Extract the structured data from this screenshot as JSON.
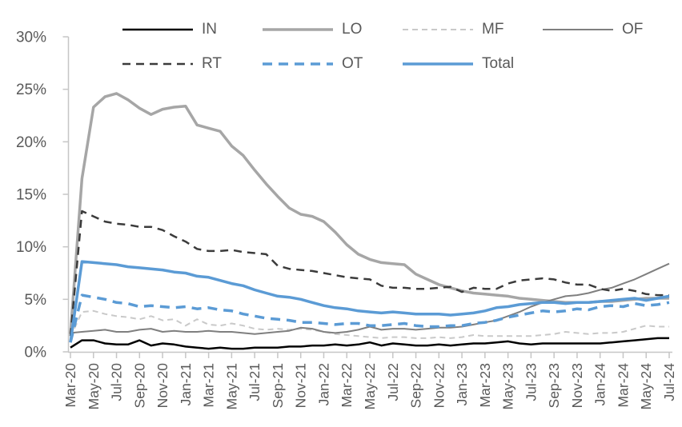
{
  "chart_data": {
    "type": "line",
    "title": "",
    "xlabel": "",
    "ylabel": "",
    "grid": false,
    "legend_position": "top",
    "ylim": [
      0,
      30
    ],
    "ytick_step": 5,
    "ytick_labels": [
      "0%",
      "5%",
      "10%",
      "15%",
      "20%",
      "25%",
      "30%"
    ],
    "x_tick_every": 2,
    "axis_color": "#c6c6c6",
    "text_color": "#595959",
    "x": [
      "Mar-20",
      "Apr-20",
      "May-20",
      "Jun-20",
      "Jul-20",
      "Aug-20",
      "Sep-20",
      "Oct-20",
      "Nov-20",
      "Dec-20",
      "Jan-21",
      "Feb-21",
      "Mar-21",
      "Apr-21",
      "May-21",
      "Jun-21",
      "Jul-21",
      "Aug-21",
      "Sep-21",
      "Oct-21",
      "Nov-21",
      "Dec-21",
      "Jan-22",
      "Feb-22",
      "Mar-22",
      "Apr-22",
      "May-22",
      "Jun-22",
      "Jul-22",
      "Aug-22",
      "Sep-22",
      "Oct-22",
      "Nov-22",
      "Dec-22",
      "Jan-23",
      "Feb-23",
      "Mar-23",
      "Apr-23",
      "May-23",
      "Jun-23",
      "Jul-23",
      "Aug-23",
      "Sep-23",
      "Oct-23",
      "Nov-23",
      "Dec-23",
      "Jan-24",
      "Feb-24",
      "Mar-24",
      "Apr-24",
      "May-24",
      "Jun-24",
      "Jul-24"
    ],
    "legend_rows": [
      [
        "IN",
        "LO",
        "MF",
        "OF"
      ],
      [
        "RT",
        "OT",
        "Total"
      ]
    ],
    "series": [
      {
        "name": "IN",
        "color": "#000000",
        "width": 2.5,
        "dash": null,
        "values": [
          0.4,
          1.1,
          1.1,
          0.8,
          0.7,
          0.7,
          1.1,
          0.6,
          0.8,
          0.7,
          0.5,
          0.4,
          0.3,
          0.4,
          0.3,
          0.3,
          0.4,
          0.4,
          0.4,
          0.5,
          0.5,
          0.6,
          0.6,
          0.7,
          0.6,
          0.7,
          0.9,
          0.6,
          0.8,
          0.7,
          0.6,
          0.6,
          0.7,
          0.6,
          0.7,
          0.8,
          0.8,
          0.9,
          1.0,
          0.8,
          0.7,
          0.8,
          0.8,
          0.8,
          0.8,
          0.8,
          0.8,
          0.9,
          1.0,
          1.1,
          1.2,
          1.3,
          1.3
        ]
      },
      {
        "name": "LO",
        "color": "#a6a6a6",
        "width": 3.5,
        "dash": null,
        "values": [
          1.7,
          16.5,
          23.3,
          24.3,
          24.6,
          24.0,
          23.2,
          22.6,
          23.1,
          23.3,
          23.4,
          21.6,
          21.3,
          21.0,
          19.6,
          18.7,
          17.3,
          16.0,
          14.8,
          13.7,
          13.1,
          12.9,
          12.4,
          11.4,
          10.2,
          9.3,
          8.8,
          8.5,
          8.4,
          8.3,
          7.4,
          6.9,
          6.4,
          6.1,
          5.8,
          5.6,
          5.5,
          5.4,
          5.3,
          5.1,
          5.0,
          4.9,
          4.8,
          4.7,
          4.7,
          4.7,
          4.8,
          4.8,
          4.9,
          5.0,
          5.1,
          5.1,
          5.1
        ]
      },
      {
        "name": "MF",
        "color": "#c9c9c9",
        "width": 2,
        "dash": "7 5",
        "values": [
          1.4,
          3.8,
          3.9,
          3.6,
          3.4,
          3.3,
          3.1,
          3.4,
          3.0,
          3.1,
          2.5,
          3.1,
          2.6,
          2.5,
          2.7,
          2.5,
          2.2,
          2.1,
          2.2,
          2.1,
          2.2,
          2.1,
          1.9,
          1.7,
          1.6,
          1.5,
          1.4,
          1.3,
          1.4,
          1.4,
          1.3,
          1.3,
          1.4,
          1.3,
          1.4,
          1.6,
          1.5,
          1.5,
          1.5,
          1.5,
          1.5,
          1.6,
          1.7,
          1.9,
          1.8,
          1.7,
          1.8,
          1.8,
          1.9,
          2.2,
          2.5,
          2.4,
          2.4
        ]
      },
      {
        "name": "OF",
        "color": "#7f7f7f",
        "width": 2,
        "dash": null,
        "values": [
          1.8,
          1.9,
          2.0,
          2.1,
          1.9,
          1.9,
          2.1,
          2.2,
          1.9,
          2.0,
          1.9,
          1.9,
          2.0,
          1.9,
          1.9,
          1.8,
          1.7,
          1.8,
          1.9,
          2.0,
          2.3,
          2.2,
          1.9,
          1.8,
          1.9,
          2.1,
          2.4,
          2.1,
          2.2,
          2.2,
          2.1,
          2.2,
          2.3,
          2.3,
          2.4,
          2.6,
          2.8,
          3.0,
          3.4,
          3.8,
          4.3,
          4.7,
          5.0,
          5.3,
          5.4,
          5.6,
          5.9,
          6.1,
          6.5,
          6.9,
          7.4,
          7.9,
          8.4
        ]
      },
      {
        "name": "RT",
        "color": "#3b3b3b",
        "width": 2.5,
        "dash": "10 7",
        "values": [
          1.5,
          13.4,
          12.9,
          12.4,
          12.2,
          12.1,
          11.9,
          11.9,
          11.6,
          11.0,
          10.5,
          9.8,
          9.6,
          9.6,
          9.7,
          9.5,
          9.4,
          9.3,
          8.2,
          7.9,
          7.8,
          7.7,
          7.5,
          7.3,
          7.1,
          7.0,
          6.9,
          6.3,
          6.1,
          6.1,
          6.0,
          6.0,
          6.1,
          6.2,
          5.7,
          6.1,
          6.0,
          6.0,
          6.5,
          6.8,
          6.9,
          7.0,
          6.9,
          6.6,
          6.4,
          6.4,
          6.0,
          5.8,
          6.0,
          5.8,
          5.5,
          5.4,
          5.4
        ]
      },
      {
        "name": "OT",
        "color": "#5b9bd5",
        "width": 3.5,
        "dash": "12 8",
        "values": [
          0.9,
          5.4,
          5.2,
          5.0,
          4.7,
          4.6,
          4.3,
          4.4,
          4.3,
          4.2,
          4.3,
          4.1,
          4.2,
          4.0,
          3.9,
          3.6,
          3.4,
          3.2,
          3.1,
          3.0,
          2.8,
          2.8,
          2.7,
          2.6,
          2.7,
          2.7,
          2.5,
          2.5,
          2.6,
          2.7,
          2.5,
          2.4,
          2.4,
          2.5,
          2.5,
          2.7,
          2.8,
          3.0,
          3.3,
          3.5,
          3.7,
          3.9,
          3.8,
          3.9,
          4.1,
          4.0,
          4.3,
          4.4,
          4.3,
          4.6,
          4.4,
          4.5,
          4.7
        ]
      },
      {
        "name": "Total",
        "color": "#5b9bd5",
        "width": 3.5,
        "dash": null,
        "values": [
          0.9,
          8.6,
          8.5,
          8.4,
          8.3,
          8.1,
          8.0,
          7.9,
          7.8,
          7.6,
          7.5,
          7.2,
          7.1,
          6.8,
          6.5,
          6.3,
          5.9,
          5.6,
          5.3,
          5.2,
          5.0,
          4.7,
          4.4,
          4.2,
          4.1,
          3.9,
          3.8,
          3.7,
          3.8,
          3.7,
          3.6,
          3.6,
          3.6,
          3.5,
          3.6,
          3.7,
          3.9,
          4.2,
          4.3,
          4.5,
          4.6,
          4.7,
          4.7,
          4.6,
          4.7,
          4.7,
          4.8,
          4.9,
          5.0,
          5.1,
          4.9,
          5.1,
          5.3
        ]
      }
    ]
  }
}
